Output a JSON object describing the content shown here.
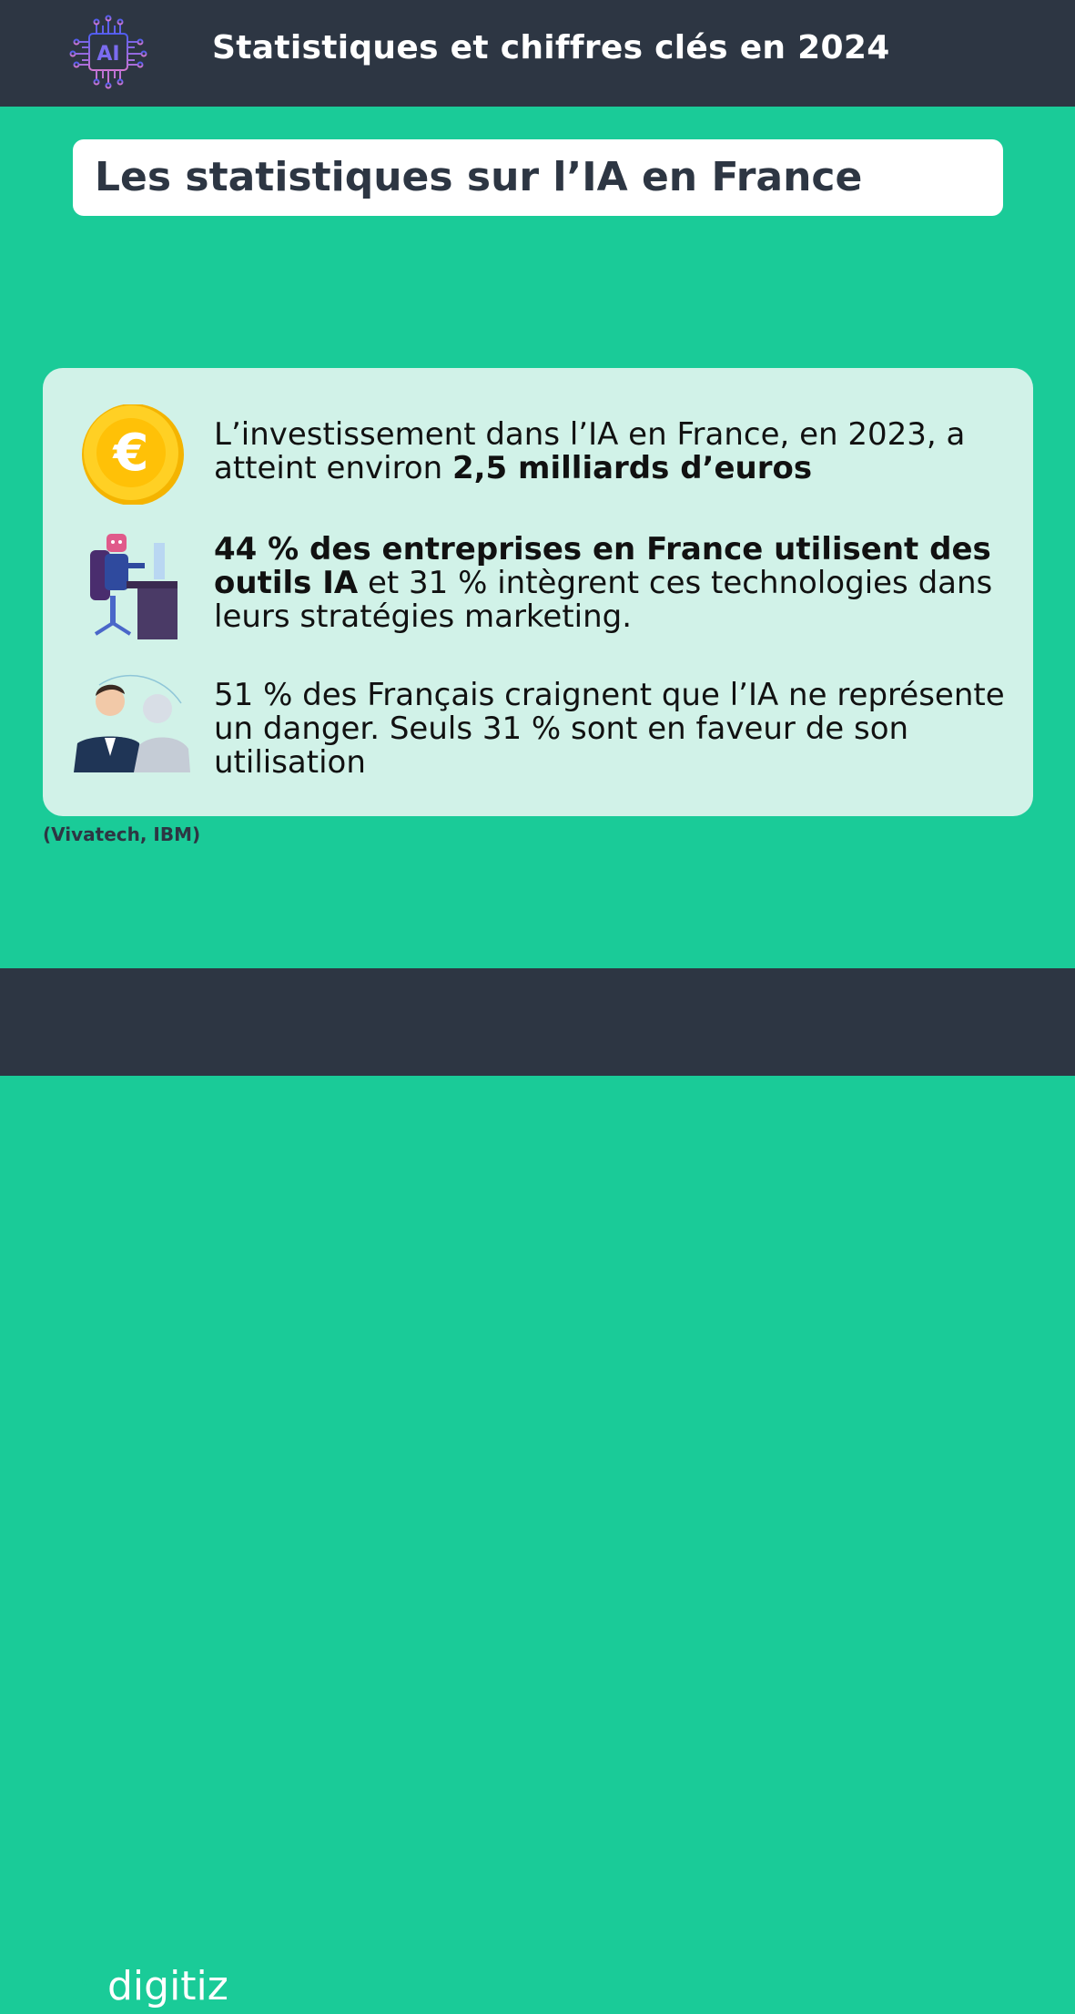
{
  "header": {
    "title": "Statistiques et chiffres clés en 2024",
    "logo_text": "AI",
    "logo_icon": "ai-chip-icon"
  },
  "title": "Les statistiques sur l’IA en France",
  "stats": [
    {
      "icon": "euro-coin-icon",
      "pre": "L’investissement dans l’IA en France, en 2023, a atteint environ ",
      "bold": "2,5 milliards d’euros",
      "post": ""
    },
    {
      "icon": "robot-at-desk-icon",
      "bold": "44 % des entreprises en France utilisent des outils IA",
      "post": " et 31 % intègrent ces technologies dans leurs stratégies marketing."
    },
    {
      "icon": "human-and-robot-icon",
      "text": "51 % des Français craignent que l’IA ne représente un danger. Seuls 31 % sont en faveur de son utilisation"
    }
  ],
  "source": "(Vivatech, IBM)",
  "footer": {
    "brand": "digitiz",
    "brand_icon": "rocket-icon"
  },
  "colors": {
    "dark": "#2d3643",
    "green": "#1acb98",
    "card": "#d1f2e8",
    "logo_purple": "#7b6cf0"
  }
}
